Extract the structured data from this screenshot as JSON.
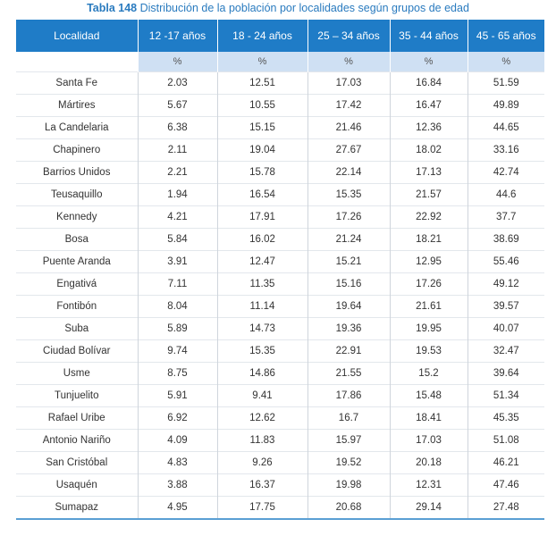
{
  "caption": {
    "number": "Tabla 148",
    "text": "Distribución de la población por localidades según grupos de edad"
  },
  "table": {
    "headers": [
      "Localidad",
      "12 -17 años",
      "18 - 24 años",
      "25 – 34 años",
      "35 - 44 años",
      "45 - 65 años"
    ],
    "units": [
      "",
      "%",
      "%",
      "%",
      "%",
      "%"
    ],
    "rows": [
      [
        "Santa Fe",
        "2.03",
        "12.51",
        "17.03",
        "16.84",
        "51.59"
      ],
      [
        "Mártires",
        "5.67",
        "10.55",
        "17.42",
        "16.47",
        "49.89"
      ],
      [
        "La Candelaria",
        "6.38",
        "15.15",
        "21.46",
        "12.36",
        "44.65"
      ],
      [
        "Chapinero",
        "2.11",
        "19.04",
        "27.67",
        "18.02",
        "33.16"
      ],
      [
        "Barrios Unidos",
        "2.21",
        "15.78",
        "22.14",
        "17.13",
        "42.74"
      ],
      [
        "Teusaquillo",
        "1.94",
        "16.54",
        "15.35",
        "21.57",
        "44.6"
      ],
      [
        "Kennedy",
        "4.21",
        "17.91",
        "17.26",
        "22.92",
        "37.7"
      ],
      [
        "Bosa",
        "5.84",
        "16.02",
        "21.24",
        "18.21",
        "38.69"
      ],
      [
        "Puente Aranda",
        "3.91",
        "12.47",
        "15.21",
        "12.95",
        "55.46"
      ],
      [
        "Engativá",
        "7.11",
        "11.35",
        "15.16",
        "17.26",
        "49.12"
      ],
      [
        "Fontibón",
        "8.04",
        "11.14",
        "19.64",
        "21.61",
        "39.57"
      ],
      [
        "Suba",
        "5.89",
        "14.73",
        "19.36",
        "19.95",
        "40.07"
      ],
      [
        "Ciudad Bolívar",
        "9.74",
        "15.35",
        "22.91",
        "19.53",
        "32.47"
      ],
      [
        "Usme",
        "8.75",
        "14.86",
        "21.55",
        "15.2",
        "39.64"
      ],
      [
        "Tunjuelito",
        "5.91",
        "9.41",
        "17.86",
        "15.48",
        "51.34"
      ],
      [
        "Rafael Uribe",
        "6.92",
        "12.62",
        "16.7",
        "18.41",
        "45.35"
      ],
      [
        "Antonio Nariño",
        "4.09",
        "11.83",
        "15.97",
        "17.03",
        "51.08"
      ],
      [
        "San Cristóbal",
        "4.83",
        "9.26",
        "19.52",
        "20.18",
        "46.21"
      ],
      [
        "Usaquén",
        "3.88",
        "16.37",
        "19.98",
        "12.31",
        "47.46"
      ],
      [
        "Sumapaz",
        "4.95",
        "17.75",
        "20.68",
        "29.14",
        "27.48"
      ]
    ]
  },
  "colors": {
    "caption": "#2a7bbf",
    "header_bg": "#1f7cc7",
    "unit_row_bg": "#cfe0f3",
    "bottom_rule": "#5a9fd4"
  }
}
